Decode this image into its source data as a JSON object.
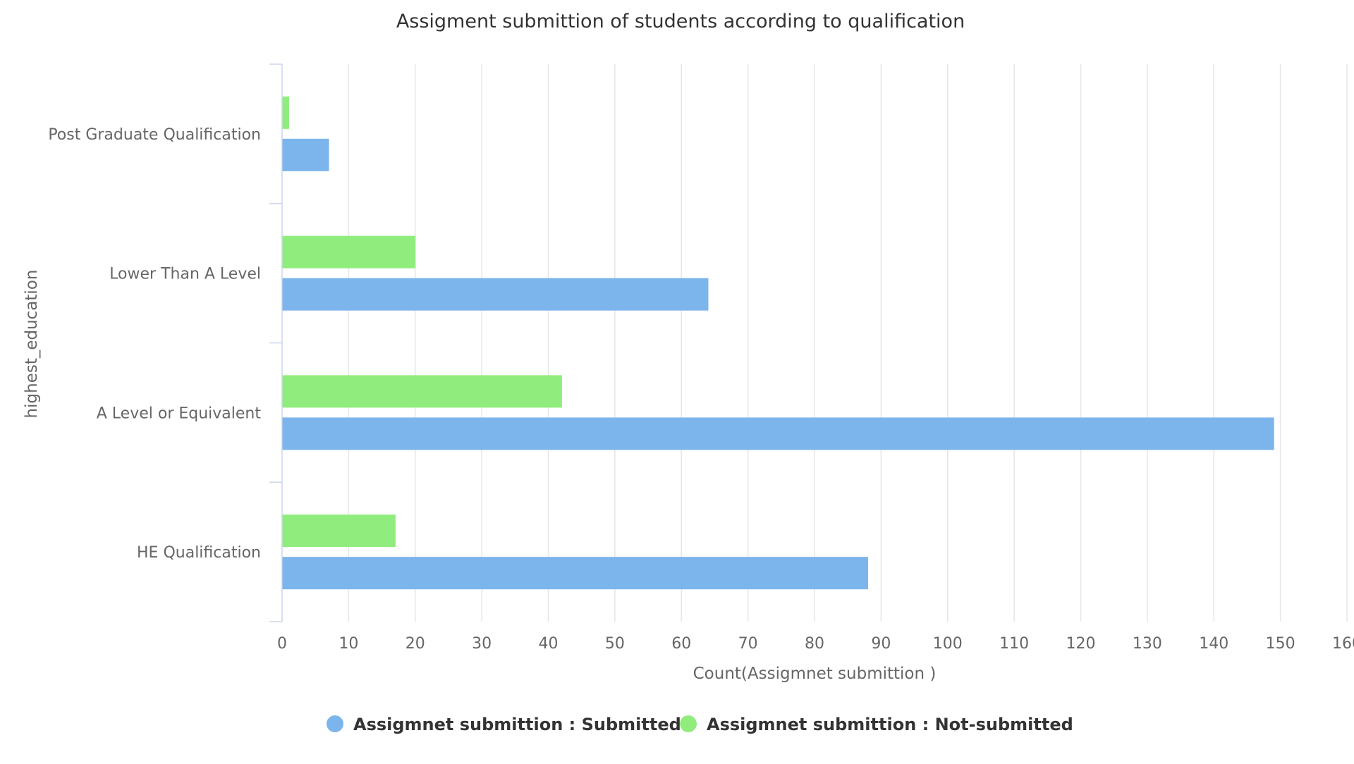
{
  "chart_data": {
    "type": "bar",
    "orientation": "horizontal",
    "title": "Assigment submittion of students according to qualification",
    "xlabel": "Count(Assigmnet submittion )",
    "ylabel": "highest_education",
    "xlim": [
      0,
      160
    ],
    "x_ticks": [
      0,
      10,
      20,
      30,
      40,
      50,
      60,
      70,
      80,
      90,
      100,
      110,
      120,
      130,
      140,
      150,
      160
    ],
    "grid": true,
    "legend_position": "bottom-center",
    "categories": [
      "Post Graduate Qualification",
      "Lower Than A Level",
      "A Level or Equivalent",
      "HE Qualification"
    ],
    "series": [
      {
        "name": "Assigmnet submittion : Submitted",
        "color": "#7cb5ec",
        "values": [
          7,
          64,
          149,
          88
        ]
      },
      {
        "name": "Assigmnet submittion : Not-submitted",
        "color": "#90ed7d",
        "values": [
          1,
          20,
          42,
          17
        ]
      }
    ]
  }
}
